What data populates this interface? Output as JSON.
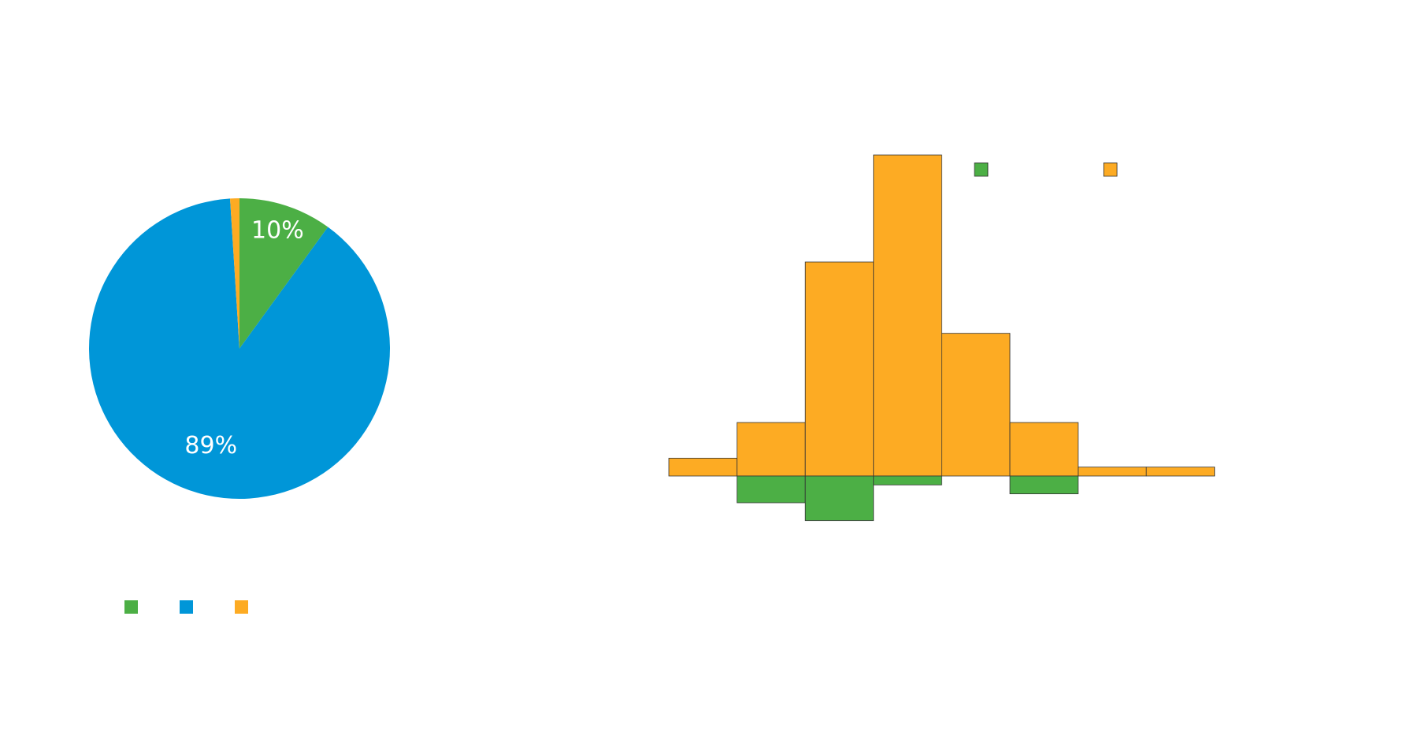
{
  "colors": {
    "green": "#4caf45",
    "blue": "#0096d8",
    "orange": "#fdab23",
    "stroke": "#333333"
  },
  "chart_data": [
    {
      "type": "pie",
      "slices": [
        {
          "value": 10,
          "color": "#4caf45",
          "label": "10%"
        },
        {
          "value": 89,
          "color": "#0096d8",
          "label": "89%"
        },
        {
          "value": 1,
          "color": "#fdab23",
          "label": ""
        }
      ],
      "start_angle_deg": 0,
      "direction": "clockwise",
      "legend": {
        "position": "bottom-left",
        "entries": [
          "",
          "",
          ""
        ],
        "colors": [
          "#4caf45",
          "#0096d8",
          "#fdab23"
        ]
      }
    },
    {
      "type": "bar",
      "subtype": "histogram-diverging",
      "bins": 8,
      "ylim": [
        -5,
        36
      ],
      "series": [
        {
          "color": "#fdab23",
          "values": [
            2,
            6,
            24,
            36,
            16,
            6,
            1,
            1
          ]
        },
        {
          "color": "#4caf45",
          "values": [
            0,
            -3,
            -5,
            -1,
            0,
            -2,
            0,
            0
          ]
        }
      ],
      "legend": {
        "position": "top-right",
        "entries": [
          "",
          ""
        ],
        "colors": [
          "#4caf45",
          "#fdab23"
        ]
      }
    }
  ]
}
